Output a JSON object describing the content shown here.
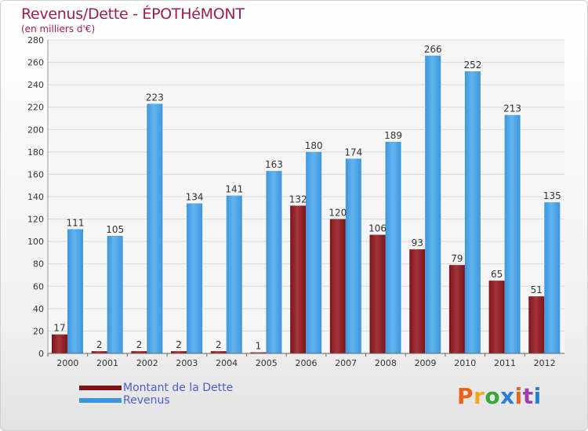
{
  "title": "Revenus/Dette - ÉPOTHéMONT",
  "subtitle": "(en milliers d'€)",
  "colors": {
    "dette": "#7a1418",
    "revenus": "#3d97de",
    "title": "#a01c4c",
    "legend_text": "#4a5ecf"
  },
  "chart_data": {
    "type": "bar",
    "categories": [
      "2000",
      "2001",
      "2002",
      "2003",
      "2004",
      "2005",
      "2006",
      "2007",
      "2008",
      "2009",
      "2010",
      "2011",
      "2012"
    ],
    "series": [
      {
        "name": "Montant de la Dette",
        "color": "#7a1418",
        "values": [
          17,
          2,
          2,
          2,
          2,
          1,
          132,
          120,
          106,
          93,
          79,
          65,
          51
        ]
      },
      {
        "name": "Revenus",
        "color": "#3d97de",
        "values": [
          111,
          105,
          223,
          134,
          141,
          163,
          180,
          174,
          189,
          266,
          252,
          213,
          135
        ]
      }
    ],
    "ylim": [
      0,
      280
    ],
    "yticks": [
      0,
      20,
      40,
      60,
      80,
      100,
      120,
      140,
      160,
      180,
      200,
      220,
      240,
      260,
      280
    ],
    "grid": true,
    "legend_position": "bottom-left"
  },
  "legend": [
    {
      "label": "Montant de la Dette",
      "color": "#7a1418"
    },
    {
      "label": "Revenus",
      "color": "#3d97de"
    }
  ],
  "logo": {
    "text": "Proxiti"
  }
}
